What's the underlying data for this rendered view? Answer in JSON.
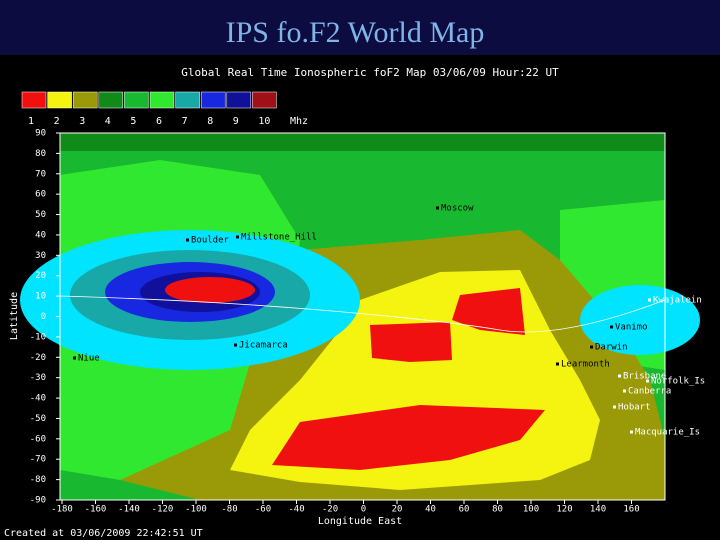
{
  "header": {
    "title": "IPS fo.F2 World Map"
  },
  "map": {
    "title": "Global Real Time Ionospheric foF2 Map  03/06/09 Hour:22 UT",
    "legend": {
      "labels": [
        "1",
        "2",
        "3",
        "4",
        "5",
        "6",
        "7",
        "8",
        "9",
        "10"
      ],
      "unit": "Mhz",
      "colors": [
        "#f01010",
        "#f4f410",
        "#9a9a08",
        "#108a18",
        "#18b830",
        "#30e830",
        "#18a8a8",
        "#1828e0",
        "#10109a",
        "#a01018"
      ]
    },
    "ylabel": "Latitude",
    "xlabel": "Longitude East",
    "ylim": [
      -90,
      90
    ],
    "xlim": [
      -180,
      180
    ],
    "yticks": [
      90,
      80,
      70,
      60,
      50,
      40,
      30,
      20,
      10,
      0,
      -10,
      -20,
      -30,
      -40,
      -50,
      -60,
      -70,
      -80,
      -90
    ],
    "xticks": [
      -180,
      -160,
      -140,
      -120,
      -100,
      -80,
      -60,
      -40,
      -20,
      0,
      20,
      40,
      60,
      80,
      100,
      120,
      140,
      160
    ],
    "stations": [
      "Boulder",
      "Millstone_Hill",
      "Jicamarca",
      "Niue",
      "Moscow",
      "Darwin",
      "Learmonth",
      "Vanimo",
      "Kwajalein",
      "Brisbane",
      "Norfolk_Is",
      "Canberra",
      "Hobart",
      "Macquarie_Is"
    ],
    "footer": "Created at 03/06/2009 22:42:51 UT"
  }
}
